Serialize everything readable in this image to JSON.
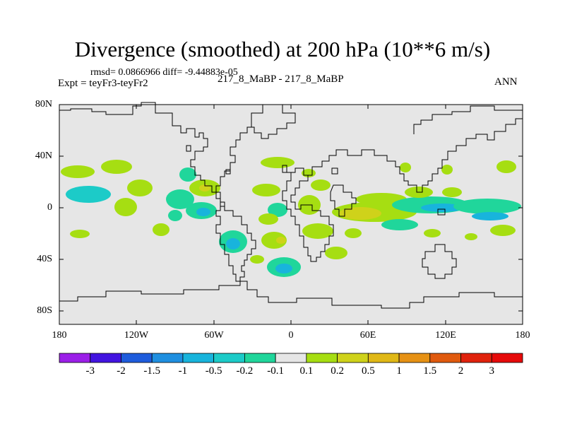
{
  "title": "Divergence (smoothed) at 200 hPa (10**6 m/s)",
  "stats": "rmsd= 0.0866966 diff= -9.44883e-05",
  "experiment": "Expt = teyFr3-teyFr2",
  "case": "217_8_MaBP - 217_8_MaBP",
  "season": "ANN",
  "y_axis_labels": [
    "80N",
    "40N",
    "0",
    "40S",
    "80S"
  ],
  "x_axis_labels": [
    "180",
    "120W",
    "60W",
    "0",
    "60E",
    "120E",
    "180"
  ],
  "colorbar_labels": [
    "-3",
    "-2",
    "-1.5",
    "-1",
    "-0.5",
    "-0.2",
    "-0.1",
    "0.1",
    "0.2",
    "0.5",
    "1",
    "1.5",
    "2",
    "3"
  ],
  "colorbar_colors": [
    "#9b1fe8",
    "#4214e0",
    "#1e5cdc",
    "#1f8fe0",
    "#18b4dc",
    "#1ccbc8",
    "#20d69b",
    "#e6e6e6",
    "#a6de12",
    "#cfd21a",
    "#e0b816",
    "#e69114",
    "#e05a0e",
    "#e0220c",
    "#e60a0a"
  ],
  "map_background": "#e6e6e6"
}
